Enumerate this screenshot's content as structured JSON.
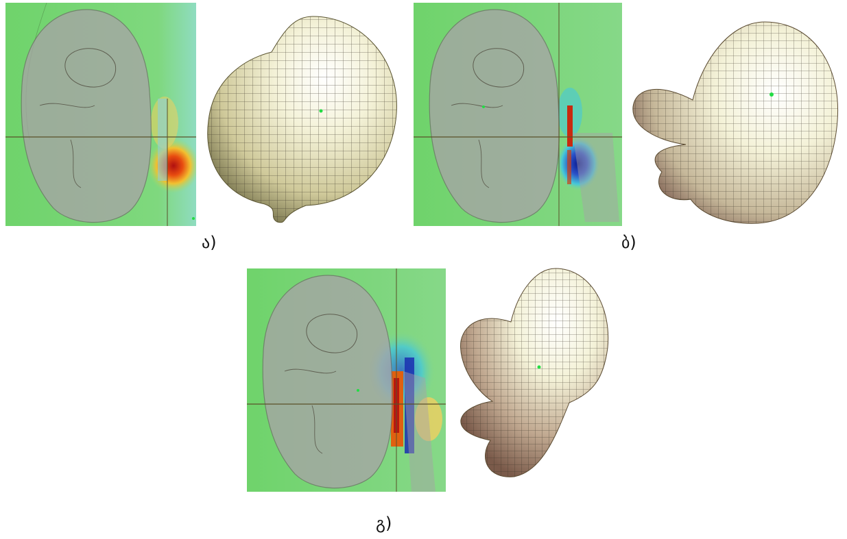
{
  "figure": {
    "captions": {
      "a": "ა)",
      "b": "ბ)",
      "c": "გ)"
    },
    "colors": {
      "field_background": "#78d878",
      "head_overlay": "#a8a0a8",
      "pattern_light": "#f2f0d4",
      "pattern_dark_b": "#b08f80",
      "pattern_mesh": "#3a3428",
      "hot": "#d03010",
      "cold": "#1a2fb0",
      "marker": "#22dd44"
    }
  }
}
